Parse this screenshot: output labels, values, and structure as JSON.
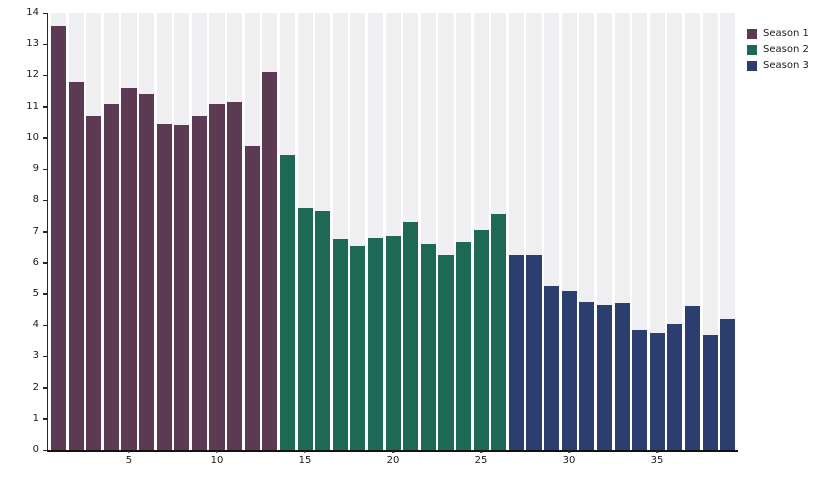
{
  "chart_data": {
    "type": "bar",
    "title": "",
    "xlabel": "",
    "ylabel": "",
    "ylim": [
      0,
      14
    ],
    "grid": false,
    "legend_position": "upper right outside plot",
    "background_color": "#ffffff",
    "slot_background_color": "#efeef0",
    "axis_color": "#111111",
    "yticks": [
      0,
      1,
      2,
      3,
      4,
      5,
      6,
      7,
      8,
      9,
      10,
      11,
      12,
      13,
      14
    ],
    "xticks": [
      5,
      10,
      15,
      20,
      25,
      30,
      35
    ],
    "series": [
      {
        "name": "Season 1",
        "color": "#5C3A54",
        "x": [
          1,
          2,
          3,
          4,
          5,
          6,
          7,
          8,
          9,
          10,
          11,
          12,
          13
        ],
        "values": [
          13.6,
          11.8,
          10.7,
          11.1,
          11.6,
          11.4,
          10.45,
          10.4,
          10.7,
          11.1,
          11.15,
          9.75,
          12.1
        ]
      },
      {
        "name": "Season 2",
        "color": "#1E6956",
        "x": [
          14,
          15,
          16,
          17,
          18,
          19,
          20,
          21,
          22,
          23,
          24,
          25,
          26
        ],
        "values": [
          9.45,
          7.75,
          7.65,
          6.75,
          6.55,
          6.8,
          6.85,
          7.3,
          6.6,
          6.25,
          6.65,
          7.05,
          7.55
        ]
      },
      {
        "name": "Season 3",
        "color": "#2B3E6E",
        "x": [
          27,
          28,
          29,
          30,
          31,
          32,
          33,
          34,
          35,
          36,
          37,
          38,
          39
        ],
        "values": [
          6.25,
          6.25,
          5.25,
          5.1,
          4.75,
          4.65,
          4.7,
          3.85,
          3.75,
          4.05,
          4.6,
          3.7,
          4.2
        ]
      }
    ]
  }
}
